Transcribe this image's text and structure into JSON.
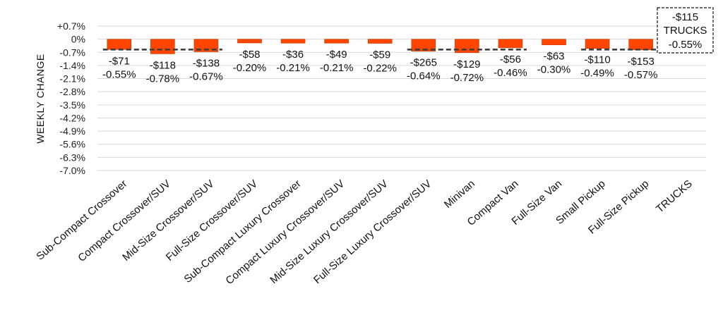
{
  "chart_data": {
    "type": "bar",
    "title": "",
    "xlabel": "",
    "ylabel": "WEEKLY CHANGE",
    "ylim": [
      -7.0,
      0.7
    ],
    "yticks": [
      "+0.7%",
      "0%",
      "-0.7%",
      "-1.4%",
      "-2.1%",
      "-2.8%",
      "-3.5%",
      "-4.2%",
      "-4.9%",
      "-5.6%",
      "-6.3%",
      "-7.0%"
    ],
    "ytick_values": [
      0.7,
      0,
      -0.7,
      -1.4,
      -2.1,
      -2.8,
      -3.5,
      -4.2,
      -4.9,
      -5.6,
      -6.3,
      -7.0
    ],
    "grid": true,
    "bar_color": "#ff4500",
    "reference_line_color": "#404040",
    "categories": [
      "Sub-Compact Crossover",
      "Compact Crossover/SUV",
      "Mid-Size Crossover/SUV",
      "Full-Size Crossover/SUV",
      "Sub-Compact Luxury Crossover",
      "Compact Luxury Crossover/SUV",
      "Mid-Size Luxury Crossover/SUV",
      "Full-Size Luxury Crossover/SUV",
      "Minivan",
      "Compact Van",
      "Full-Size Van",
      "Small Pickup",
      "Full-Size Pickup",
      "TRUCKS"
    ],
    "values": [
      -0.55,
      -0.78,
      -0.67,
      -0.2,
      -0.21,
      -0.21,
      -0.22,
      -0.64,
      -0.72,
      -0.46,
      -0.3,
      -0.49,
      -0.57,
      null
    ],
    "dollar_labels": [
      "-$71",
      "-$118",
      "-$138",
      "-$58",
      "-$36",
      "-$49",
      "-$59",
      "-$265",
      "-$129",
      "-$56",
      "-$63",
      "-$110",
      "-$153",
      ""
    ],
    "percent_labels": [
      "-0.55%",
      "-0.78%",
      "-0.67%",
      "-0.20%",
      "-0.21%",
      "-0.21%",
      "-0.22%",
      "-0.64%",
      "-0.72%",
      "-0.46%",
      "-0.30%",
      "-0.49%",
      "-0.57%",
      ""
    ],
    "reference_value": -0.55,
    "reference_segments": [
      [
        0,
        2
      ],
      [
        7,
        9
      ],
      [
        11,
        12
      ]
    ],
    "summary_box": {
      "line1": "-$115",
      "line2": "TRUCKS",
      "line3": "-0.55%"
    }
  }
}
